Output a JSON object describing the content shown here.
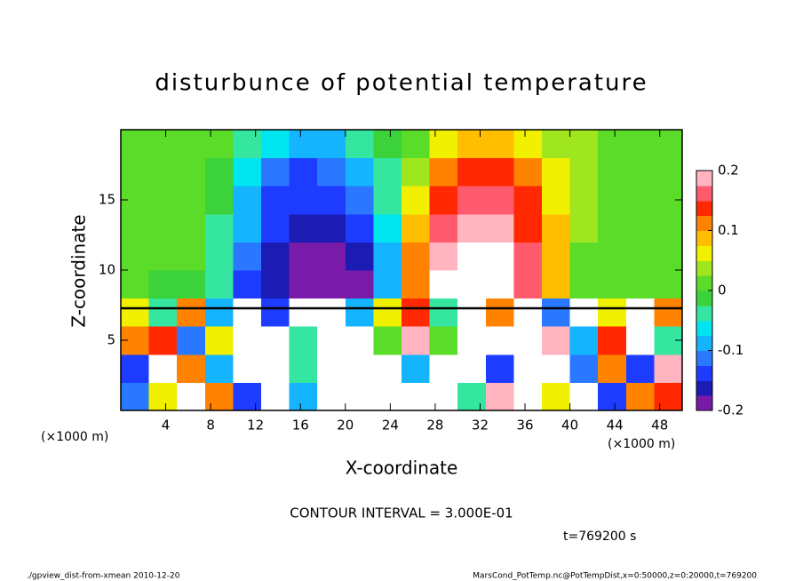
{
  "chart_data": {
    "type": "heatmap",
    "title": "disturbunce of potential temperature",
    "x_label": "X-coordinate",
    "y_label": "Z-coordinate",
    "x_unit_labels": [
      "(×1000 m)",
      "(×1000 m)"
    ],
    "annotation": "CONTOUR INTERVAL = 3.000E-01",
    "time_label": "t=769200 s",
    "footer_left": "./gpview_dist-from-xmean  2010-12-20",
    "footer_right": "MarsCond_PotTemp.nc@PotTempDist,x=0:50000,z=0:20000,t=769200",
    "xlim": [
      0,
      50
    ],
    "xticks": [
      4,
      8,
      12,
      16,
      20,
      24,
      28,
      32,
      36,
      40,
      44,
      48
    ],
    "ylim": [
      0,
      20
    ],
    "yticks": [
      5,
      10,
      15
    ],
    "x": [
      1.25,
      3.75,
      6.25,
      8.75,
      11.25,
      13.75,
      16.25,
      18.75,
      21.25,
      23.75,
      26.25,
      28.75,
      31.25,
      33.75,
      36.25,
      38.75,
      41.25,
      43.75,
      46.25,
      48.75
    ],
    "z": [
      1,
      3,
      5,
      7,
      9,
      11,
      13,
      15,
      17,
      19
    ],
    "values": [
      [
        -0.12,
        0.05,
        0.22,
        0.1,
        -0.15,
        0.22,
        -0.1,
        0.22,
        0.22,
        0.22,
        0.22,
        0.22,
        -0.05,
        0.18,
        0.22,
        0.05,
        0.2,
        -0.13,
        0.1,
        0.15
      ],
      [
        -0.15,
        0.22,
        0.12,
        -0.1,
        0.22,
        0.22,
        -0.05,
        0.22,
        0.22,
        0.22,
        -0.08,
        0.22,
        0.22,
        -0.15,
        0.22,
        0.22,
        -0.12,
        0.1,
        -0.15,
        0.18
      ],
      [
        0.1,
        0.15,
        -0.12,
        0.05,
        0.22,
        0.22,
        -0.05,
        0.22,
        0.22,
        0.0,
        0.18,
        0.02,
        0.22,
        0.22,
        0.22,
        0.18,
        -0.1,
        0.15,
        0.22,
        -0.05
      ],
      [
        0.05,
        -0.05,
        0.1,
        -0.1,
        0.21,
        -0.15,
        0.22,
        0.22,
        -0.1,
        0.05,
        0.15,
        -0.05,
        0.22,
        0.1,
        0.22,
        -0.12,
        0.21,
        0.05,
        0.22,
        0.1
      ],
      [
        0,
        -0.01,
        -0.01,
        -0.05,
        -0.13,
        -0.17,
        -0.2,
        -0.21,
        -0.21,
        -0.1,
        0.12,
        0.2,
        0.22,
        0.22,
        0.17,
        0.08,
        0.02,
        0.01,
        0.01,
        0.02
      ],
      [
        0.01,
        0,
        0,
        -0.04,
        -0.12,
        -0.16,
        -0.18,
        -0.19,
        -0.16,
        -0.08,
        0.1,
        0.18,
        0.21,
        0.2,
        0.16,
        0.09,
        0.02,
        0.01,
        0.02,
        0.02
      ],
      [
        0.02,
        0.01,
        0.0,
        -0.03,
        -0.1,
        -0.14,
        -0.17,
        -0.17,
        -0.13,
        -0.06,
        0.08,
        0.16,
        0.18,
        0.18,
        0.15,
        0.08,
        0.03,
        0.02,
        0.02,
        0.02
      ],
      [
        0.02,
        0.02,
        0.01,
        -0.02,
        -0.08,
        -0.13,
        -0.15,
        -0.15,
        -0.11,
        -0.04,
        0.06,
        0.14,
        0.16,
        0.16,
        0.13,
        0.07,
        0.03,
        0.02,
        0.02,
        0.02
      ],
      [
        0.02,
        0.02,
        0.01,
        -0.01,
        -0.06,
        -0.11,
        -0.13,
        -0.12,
        -0.08,
        -0.03,
        0.04,
        0.1,
        0.13,
        0.13,
        0.1,
        0.05,
        0.03,
        0.02,
        0.01,
        0.02
      ],
      [
        0.02,
        0.02,
        0.02,
        0,
        -0.04,
        -0.07,
        -0.09,
        -0.08,
        -0.05,
        -0.02,
        0.02,
        0.06,
        0.08,
        0.08,
        0.06,
        0.04,
        0.03,
        0.02,
        0.01,
        0.02
      ]
    ],
    "colorbar": {
      "lim": [
        -0.2,
        0.2
      ],
      "ticks": [
        0.2,
        0.1,
        0,
        -0.1,
        -0.2
      ],
      "colors": [
        "#7a1aa8",
        "#1c1cb4",
        "#1e3cff",
        "#2a78ff",
        "#14b4ff",
        "#00e6f0",
        "#34e6a0",
        "#3cd23c",
        "#5adc28",
        "#a0e61e",
        "#f0f000",
        "#ffbe00",
        "#ff8200",
        "#ff2800",
        "#ff5a6e",
        "#ffb4c0"
      ],
      "over_color": "#ffffff"
    }
  }
}
